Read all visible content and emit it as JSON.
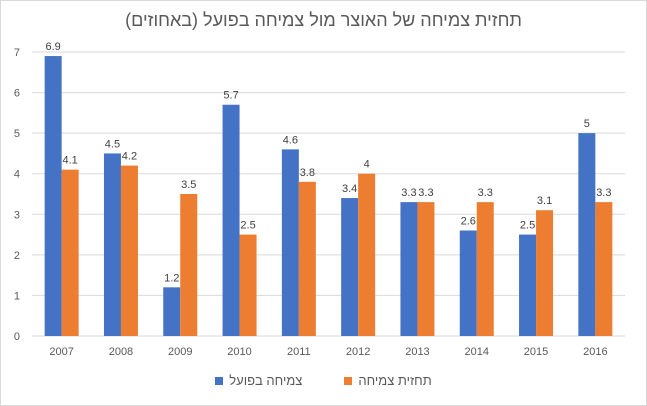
{
  "chart_data": {
    "type": "bar",
    "title": "תחזית צמיחה של האוצר מול צמיחה בפועל (באחוזים)",
    "categories": [
      "2007",
      "2008",
      "2009",
      "2010",
      "2011",
      "2012",
      "2013",
      "2014",
      "2015",
      "2016"
    ],
    "series": [
      {
        "name": "צמיחה בפועל",
        "color": "#4472c4",
        "values": [
          6.9,
          4.5,
          1.2,
          5.7,
          4.6,
          3.4,
          3.3,
          2.6,
          2.5,
          5
        ]
      },
      {
        "name": "תחזית צמיחה",
        "color": "#ed7d31",
        "values": [
          4.1,
          4.2,
          3.5,
          2.5,
          3.8,
          4,
          3.3,
          3.3,
          3.1,
          3.3
        ]
      }
    ],
    "xlabel": "",
    "ylabel": "",
    "ylim": [
      0,
      7
    ],
    "yticks": [
      "0",
      "1",
      "2",
      "3",
      "4",
      "5",
      "6",
      "7"
    ],
    "grid": true,
    "legend": "bottom"
  }
}
